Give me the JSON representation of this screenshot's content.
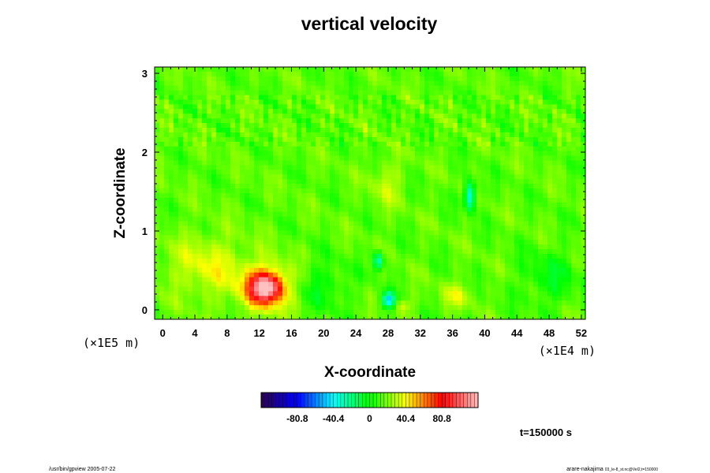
{
  "chart_data": {
    "type": "heatmap",
    "title": "vertical velocity",
    "xlabel": "X-coordinate",
    "ylabel": "Z-coordinate",
    "x_ticks": [
      "0",
      "4",
      "8",
      "12",
      "16",
      "20",
      "24",
      "28",
      "32",
      "36",
      "40",
      "44",
      "48",
      "52"
    ],
    "y_ticks": [
      "0",
      "1",
      "2",
      "3"
    ],
    "xlim": [
      -1,
      52.5
    ],
    "ylim": [
      -0.12,
      3.08
    ],
    "x_scale_label": "(×1E4 m)",
    "y_scale_label": "(×1E5 m)",
    "colorbar": {
      "min": -121.2,
      "max": 121.2,
      "tick_values": [
        -80.8,
        -40.4,
        0,
        40.4,
        80.8
      ],
      "tick_labels": [
        "-80.8",
        "-40.4",
        "0",
        "40.4",
        "80.8"
      ],
      "colors": [
        "#2b004f",
        "#0000ff",
        "#00ffff",
        "#00ff00",
        "#ffff00",
        "#ff0000",
        "#ffc0c0"
      ]
    },
    "features": [
      {
        "x": 12.8,
        "z": 0.28,
        "value": 85,
        "rx": 2.0,
        "rz": 0.18
      },
      {
        "x": 12.8,
        "z": 0.28,
        "value": 35,
        "rx": 3.4,
        "rz": 0.32
      },
      {
        "x": 5.5,
        "z": 0.55,
        "value": 22,
        "rx": 5.0,
        "rz": 0.4
      },
      {
        "x": 28.0,
        "z": 0.12,
        "value": -60,
        "rx": 0.8,
        "rz": 0.1
      },
      {
        "x": 26.8,
        "z": 0.62,
        "value": -50,
        "rx": 0.6,
        "rz": 0.12
      },
      {
        "x": 38.2,
        "z": 1.45,
        "value": -55,
        "rx": 0.7,
        "rz": 0.18
      },
      {
        "x": 27.8,
        "z": 1.6,
        "value": 15,
        "rx": 2.0,
        "rz": 0.3
      },
      {
        "x": 36.5,
        "z": 0.18,
        "value": 18,
        "rx": 2.0,
        "rz": 0.15
      },
      {
        "x": 20.0,
        "z": 0.3,
        "value": -15,
        "rx": 3.0,
        "rz": 0.3
      },
      {
        "x": 48.0,
        "z": 0.4,
        "value": -15,
        "rx": 3.5,
        "rz": 0.35
      },
      {
        "x": 30.0,
        "z": 0.05,
        "value": 20,
        "rx": 1.0,
        "rz": 0.08
      }
    ],
    "time_label": "t=150000 s"
  },
  "footer": {
    "left": "/usr/bin/gpview 2005-07-22",
    "right_main": "arare-nakajima",
    "right_sub": "03_le-8_st.nc@Vel2,t=150000"
  }
}
